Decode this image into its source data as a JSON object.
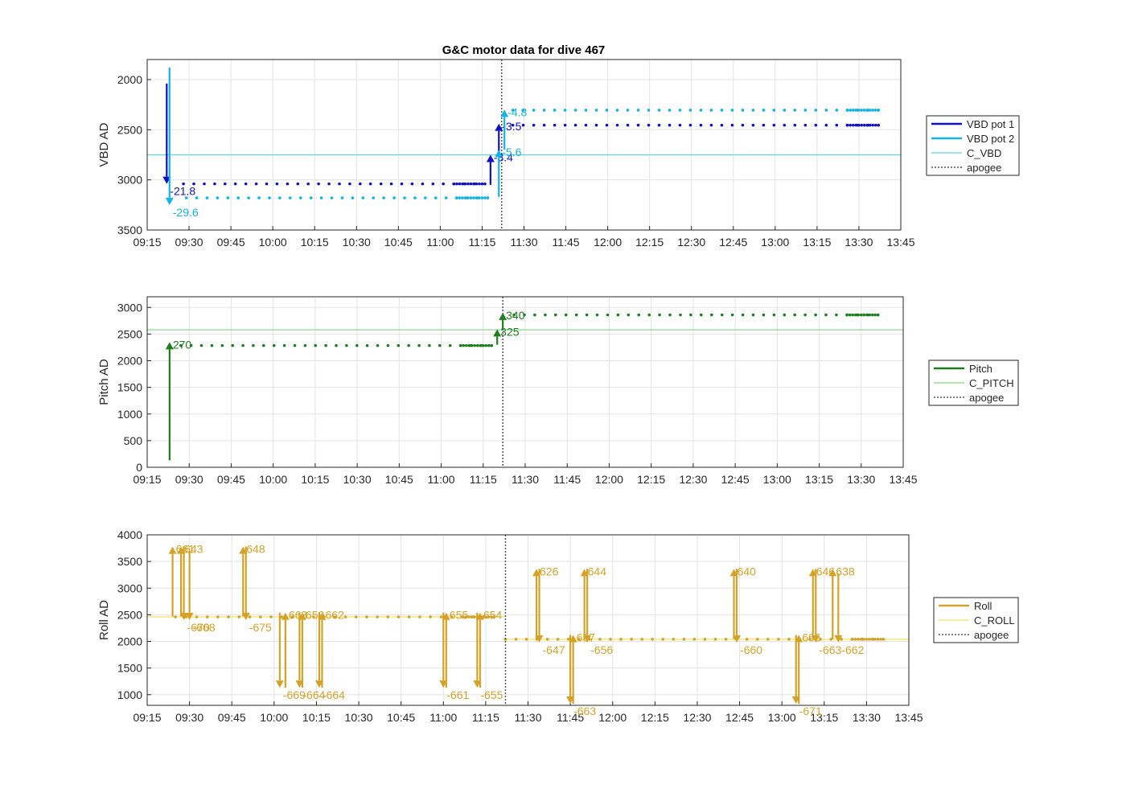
{
  "title": "G&C motor data for dive 467",
  "time_ticks": [
    "09:15",
    "09:30",
    "09:45",
    "10:00",
    "10:15",
    "10:30",
    "10:45",
    "11:00",
    "11:15",
    "11:30",
    "11:45",
    "12:00",
    "12:15",
    "12:30",
    "12:45",
    "13:00",
    "13:15",
    "13:30",
    "13:45"
  ],
  "colors": {
    "vbd1": "#1010c8",
    "vbd2": "#12b4e6",
    "c_vbd": "#5fd3e3",
    "pitch": "#1e7d1e",
    "c_pitch": "#7fd67f",
    "roll": "#d4a227",
    "c_roll": "#f2e26a",
    "apogee": "#555555"
  },
  "chart_data": [
    {
      "type": "scatter",
      "title": "G&C motor data for dive 467",
      "xlabel": "",
      "ylabel": "VBD AD",
      "ylim": [
        3500,
        1800
      ],
      "reversed_y": true,
      "yticks": [
        2000,
        2500,
        3000,
        3500
      ],
      "xlim": [
        "09:15",
        "13:45"
      ],
      "grid": true,
      "legend_position": "right",
      "legend": [
        "VBD pot 1",
        "VBD pot 2",
        "C_VBD",
        "apogee"
      ],
      "apogee": "11:22",
      "reference_lines": [
        {
          "name": "C_VBD",
          "y": 2750
        }
      ],
      "moves": [
        {
          "series": "VBD pot 1",
          "t": "09:22",
          "y0": 2040,
          "y1": 3040,
          "label": "-21.8"
        },
        {
          "series": "VBD pot 2",
          "t": "09:23",
          "y0": 1880,
          "y1": 3250,
          "label": "-29.6"
        },
        {
          "series": "VBD pot 1",
          "t": "11:18",
          "y0": 3050,
          "y1": 2750,
          "label": "-3.4"
        },
        {
          "series": "VBD pot 1",
          "t": "11:21",
          "y0": 2750,
          "y1": 2440,
          "label": "-3.5"
        },
        {
          "series": "VBD pot 2",
          "t": "11:21",
          "y0": 3170,
          "y1": 2700,
          "label": "-5.6"
        },
        {
          "series": "VBD pot 2",
          "t": "11:23",
          "y0": 2700,
          "y1": 2300,
          "label": "-4.8"
        }
      ],
      "segments": [
        {
          "series": "VBD pot 1",
          "t0": "09:28",
          "t1": "11:16",
          "y": 3040
        },
        {
          "series": "VBD pot 1",
          "t0": "11:26",
          "t1": "13:37",
          "y": 2455
        },
        {
          "series": "VBD pot 2",
          "t0": "09:29",
          "t1": "11:17",
          "y": 3180
        },
        {
          "series": "VBD pot 2",
          "t0": "11:26",
          "t1": "13:37",
          "y": 2305
        }
      ]
    },
    {
      "type": "scatter",
      "xlabel": "",
      "ylabel": "Pitch AD",
      "ylim": [
        0,
        3200
      ],
      "yticks": [
        0,
        500,
        1000,
        1500,
        2000,
        2500,
        3000
      ],
      "xlim": [
        "09:15",
        "13:45"
      ],
      "grid": true,
      "legend_position": "right",
      "legend": [
        "Pitch",
        "C_PITCH",
        "apogee"
      ],
      "apogee": "11:22",
      "reference_lines": [
        {
          "name": "C_PITCH",
          "y": 2580
        }
      ],
      "moves": [
        {
          "series": "Pitch",
          "t": "09:23",
          "y0": 130,
          "y1": 2350,
          "label": "270"
        },
        {
          "series": "Pitch",
          "t": "11:20",
          "y0": 2300,
          "y1": 2590,
          "label": "325"
        },
        {
          "series": "Pitch",
          "t": "11:22",
          "y0": 2590,
          "y1": 2900,
          "label": "340"
        }
      ],
      "segments": [
        {
          "series": "Pitch",
          "t0": "09:27",
          "t1": "11:18",
          "y": 2285
        },
        {
          "series": "Pitch",
          "t0": "11:26",
          "t1": "13:36",
          "y": 2860
        }
      ]
    },
    {
      "type": "scatter",
      "xlabel": "",
      "ylabel": "Roll AD",
      "ylim": [
        800,
        4000
      ],
      "yticks": [
        1000,
        1500,
        2000,
        2500,
        3000,
        3500,
        4000
      ],
      "xlim": [
        "09:15",
        "13:45"
      ],
      "grid": true,
      "legend_position": "right",
      "legend": [
        "Roll",
        "C_ROLL",
        "apogee"
      ],
      "apogee": "11:22",
      "reference_lines": [
        {
          "name": "C_ROLL",
          "t0": "09:15",
          "t1": "11:22",
          "y": 2460
        },
        {
          "name": "C_ROLL",
          "t0": "11:22",
          "t1": "13:45",
          "y": 2040
        }
      ],
      "moves": [
        {
          "series": "Roll",
          "t": "09:24",
          "y0": 2470,
          "y1": 3780,
          "label": "661"
        },
        {
          "series": "Roll",
          "t": "09:27",
          "y0": 2470,
          "y1": 3780,
          "label": "643"
        },
        {
          "series": "Roll",
          "t": "09:28",
          "y0": 3780,
          "y1": 2400,
          "label": "-670"
        },
        {
          "series": "Roll",
          "t": "09:30",
          "y0": 3700,
          "y1": 2400,
          "label": "-668"
        },
        {
          "series": "Roll",
          "t": "09:49",
          "y0": 2470,
          "y1": 3780,
          "label": "648"
        },
        {
          "series": "Roll",
          "t": "09:50",
          "y0": 3780,
          "y1": 2400,
          "label": "-675"
        },
        {
          "series": "Roll",
          "t": "10:04",
          "y0": 1130,
          "y1": 2540,
          "label": "663"
        },
        {
          "series": "Roll",
          "t": "10:02",
          "y0": 2540,
          "y1": 1130,
          "label": "-669"
        },
        {
          "series": "Roll",
          "t": "10:10",
          "y0": 1130,
          "y1": 2540,
          "label": "659"
        },
        {
          "series": "Roll",
          "t": "10:09",
          "y0": 2540,
          "y1": 1130,
          "label": "-664"
        },
        {
          "series": "Roll",
          "t": "10:17",
          "y0": 1130,
          "y1": 2540,
          "label": "662"
        },
        {
          "series": "Roll",
          "t": "10:16",
          "y0": 2540,
          "y1": 1130,
          "label": "-664"
        },
        {
          "series": "Roll",
          "t": "11:01",
          "y0": 1130,
          "y1": 2540,
          "label": "655"
        },
        {
          "series": "Roll",
          "t": "11:00",
          "y0": 2540,
          "y1": 1130,
          "label": "-661"
        },
        {
          "series": "Roll",
          "t": "11:13",
          "y0": 1130,
          "y1": 2540,
          "label": "654"
        },
        {
          "series": "Roll",
          "t": "11:12",
          "y0": 2540,
          "y1": 1130,
          "label": "-655"
        },
        {
          "series": "Roll",
          "t": "11:33",
          "y0": 2040,
          "y1": 3360,
          "label": "626"
        },
        {
          "series": "Roll",
          "t": "11:34",
          "y0": 3360,
          "y1": 1980,
          "label": "-647"
        },
        {
          "series": "Roll",
          "t": "11:46",
          "y0": 830,
          "y1": 2120,
          "label": "657"
        },
        {
          "series": "Roll",
          "t": "11:45",
          "y0": 2120,
          "y1": 830,
          "label": "-663"
        },
        {
          "series": "Roll",
          "t": "11:50",
          "y0": 2040,
          "y1": 3360,
          "label": "644"
        },
        {
          "series": "Roll",
          "t": "11:51",
          "y0": 3360,
          "y1": 1980,
          "label": "-656"
        },
        {
          "series": "Roll",
          "t": "12:43",
          "y0": 2040,
          "y1": 3360,
          "label": "640"
        },
        {
          "series": "Roll",
          "t": "12:44",
          "y0": 3360,
          "y1": 1980,
          "label": "-660"
        },
        {
          "series": "Roll",
          "t": "13:06",
          "y0": 830,
          "y1": 2120,
          "label": "665"
        },
        {
          "series": "Roll",
          "t": "13:05",
          "y0": 2120,
          "y1": 830,
          "label": "-671"
        },
        {
          "series": "Roll",
          "t": "13:11",
          "y0": 2040,
          "y1": 3360,
          "label": "646"
        },
        {
          "series": "Roll",
          "t": "13:12",
          "y0": 3360,
          "y1": 1980,
          "label": "-663"
        },
        {
          "series": "Roll",
          "t": "13:18",
          "y0": 2040,
          "y1": 3360,
          "label": "638"
        },
        {
          "series": "Roll",
          "t": "13:20",
          "y0": 3280,
          "y1": 1980,
          "label": "-662"
        }
      ],
      "segments": [
        {
          "series": "Roll",
          "t0": "09:25",
          "t1": "11:18",
          "y": 2460
        },
        {
          "series": "Roll",
          "t0": "11:22",
          "t1": "13:36",
          "y": 2040
        }
      ]
    }
  ]
}
